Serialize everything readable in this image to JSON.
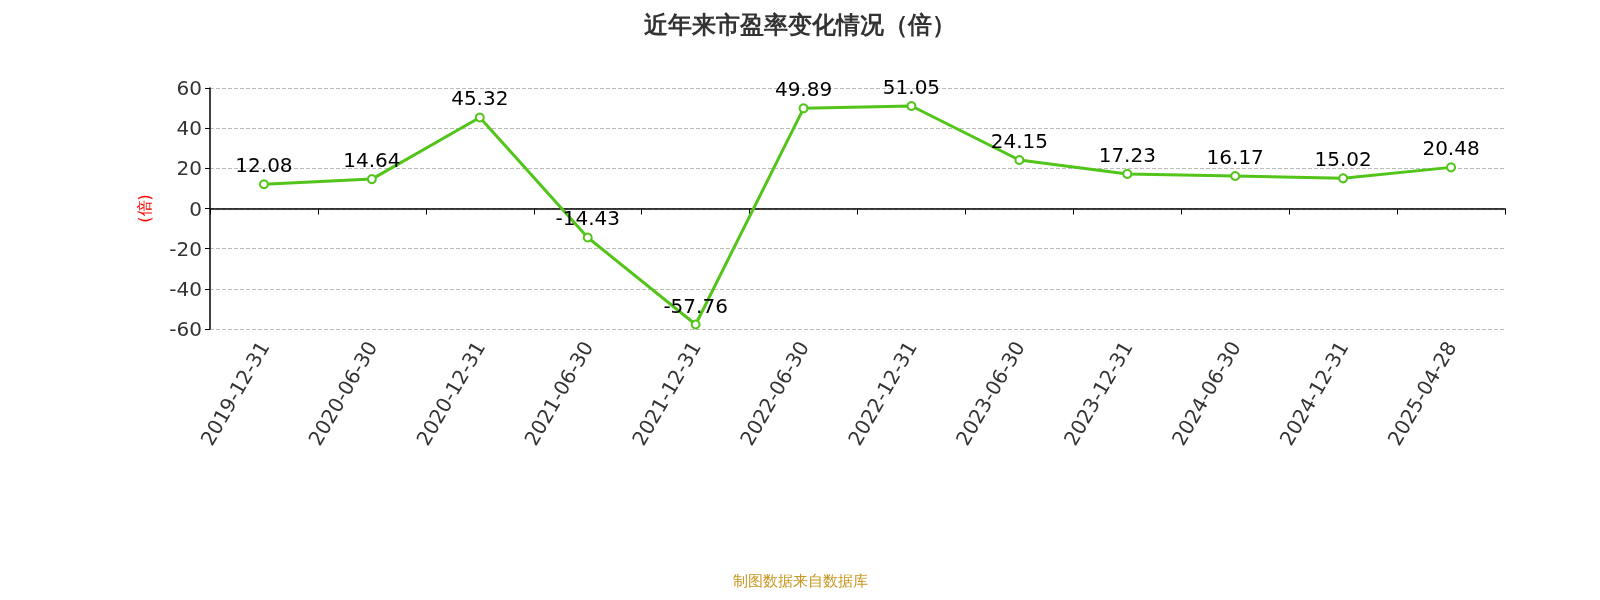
{
  "chart_data": {
    "type": "line",
    "title": "近年来市盈率变化情况（倍）",
    "ylabel": "(倍)",
    "annotations": [
      "制图数据来自数据库"
    ],
    "categories": [
      "2019-12-31",
      "2020-06-30",
      "2020-12-31",
      "2021-06-30",
      "2021-12-31",
      "2022-06-30",
      "2022-12-31",
      "2023-06-30",
      "2023-12-31",
      "2024-06-30",
      "2024-12-31",
      "2025-04-28"
    ],
    "series": [
      {
        "color": "#52c41a",
        "values": [
          12.08,
          14.64,
          45.32,
          -14.43,
          -57.76,
          49.89,
          51.05,
          24.15,
          17.23,
          16.17,
          15.02,
          20.48
        ]
      }
    ],
    "ylim": [
      -60,
      60
    ],
    "yticks": [
      -60,
      -40,
      -20,
      0,
      20,
      40,
      60
    ],
    "grid": "y",
    "data_labels": true,
    "marker": "circle",
    "line_style": "solid"
  }
}
